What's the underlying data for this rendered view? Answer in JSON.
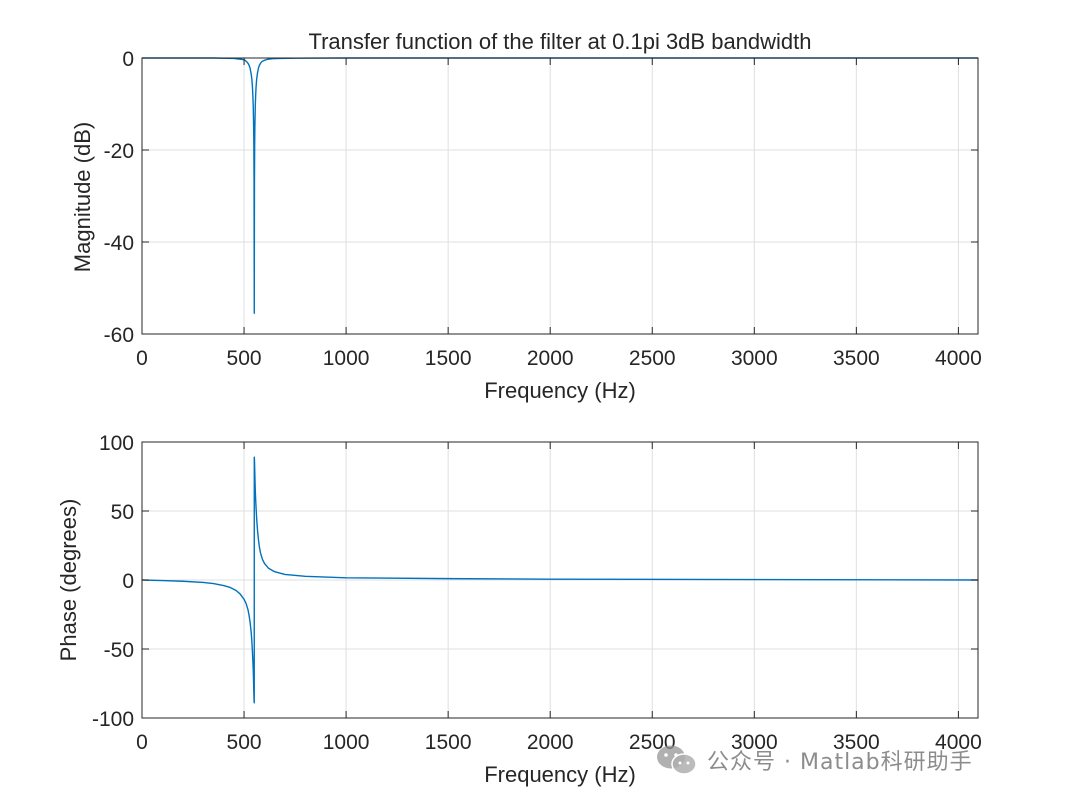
{
  "colors": {
    "line": "#0072BD",
    "axis": "#262626",
    "grid": "#dfdfdf"
  },
  "watermark": {
    "text": "公众号 · Matlab科研助手",
    "icon": "wechat-icon"
  },
  "chart_data": [
    {
      "type": "line",
      "title": "Transfer function of the filter at 0.1pi 3dB bandwidth",
      "xlabel": "Frequency (Hz)",
      "ylabel": "Magnitude (dB)",
      "xlim": [
        0,
        4096
      ],
      "ylim": [
        -60,
        0
      ],
      "xticks": [
        0,
        500,
        1000,
        1500,
        2000,
        2500,
        3000,
        3500,
        4000
      ],
      "yticks": [
        -60,
        -40,
        -20,
        0
      ],
      "grid": true,
      "series": [
        {
          "x": [
            0,
            200,
            350,
            450,
            490,
            500,
            505,
            510,
            515,
            520,
            525,
            530,
            535,
            538,
            541,
            543,
            545,
            547,
            548,
            549,
            550,
            551,
            552,
            553,
            555,
            557,
            559,
            562,
            566,
            570,
            575,
            580,
            585,
            590,
            600,
            610,
            620,
            640,
            680,
            750,
            1000,
            2000,
            3000,
            4096
          ],
          "y": [
            0,
            0,
            0,
            -0.1,
            -0.3,
            -0.4,
            -0.5,
            -0.7,
            -0.9,
            -1.2,
            -1.6,
            -2.3,
            -3.5,
            -4.5,
            -6.2,
            -8,
            -10.5,
            -15,
            -19,
            -27,
            -55.5,
            -27,
            -19,
            -15,
            -10.5,
            -8,
            -6.2,
            -4.5,
            -3.2,
            -2.3,
            -1.6,
            -1.2,
            -0.9,
            -0.7,
            -0.5,
            -0.35,
            -0.25,
            -0.15,
            -0.08,
            -0.04,
            0,
            0,
            0,
            0
          ]
        }
      ]
    },
    {
      "type": "line",
      "title": "",
      "xlabel": "Frequency (Hz)",
      "ylabel": "Phase (degrees)",
      "xlim": [
        0,
        4096
      ],
      "ylim": [
        -100,
        100
      ],
      "xticks": [
        0,
        500,
        1000,
        1500,
        2000,
        2500,
        3000,
        3500,
        4000
      ],
      "yticks": [
        -100,
        -50,
        0,
        50,
        100
      ],
      "grid": true,
      "series": [
        {
          "x": [
            0,
            100,
            200,
            300,
            350,
            400,
            430,
            460,
            480,
            500,
            510,
            520,
            525,
            530,
            535,
            538,
            541,
            543,
            545,
            546,
            547,
            548,
            549,
            549.9,
            550.1,
            551,
            552,
            553,
            554,
            555,
            557,
            559,
            562,
            566,
            570,
            575,
            580,
            590,
            600,
            620,
            650,
            700,
            800,
            1000,
            1500,
            2000,
            3000,
            4096
          ],
          "y": [
            0,
            -0.4,
            -0.9,
            -1.8,
            -2.6,
            -4,
            -5.3,
            -7.5,
            -10,
            -14,
            -17,
            -22,
            -26,
            -31,
            -38,
            -44,
            -52,
            -58,
            -65,
            -70,
            -76,
            -82,
            -87,
            -89,
            89,
            87,
            82,
            76,
            70,
            65,
            58,
            52,
            44,
            36,
            30,
            24,
            20,
            15,
            12,
            8.5,
            6,
            4,
            2.7,
            1.6,
            1,
            0.6,
            0.3,
            0
          ]
        }
      ]
    }
  ]
}
